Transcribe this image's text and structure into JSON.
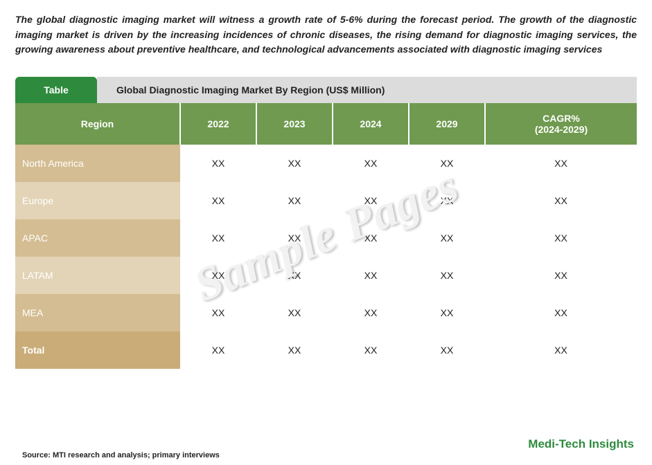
{
  "intro_text": "The global diagnostic imaging market will witness a growth rate of 5-6% during the forecast period. The growth of the diagnostic imaging market is driven by the increasing incidences of chronic diseases, the rising demand for diagnostic imaging services, the growing awareness about preventive healthcare, and technological advancements associated with diagnostic imaging services",
  "title_tab": "Table",
  "title_text": "Global Diagnostic Imaging Market By Region (US$ Million)",
  "table": {
    "header_bg": "#6f9a4f",
    "header_text_color": "#ffffff",
    "row_odd_region_bg": "#d4bd92",
    "row_even_region_bg": "#e3d4b7",
    "row_total_region_bg": "#c9ac77",
    "columns": [
      "Region",
      "2022",
      "2023",
      "2024",
      "2029",
      "CAGR%\n(2024-2029)"
    ],
    "rows": [
      {
        "region": "North America",
        "values": [
          "XX",
          "XX",
          "XX",
          "XX",
          "XX"
        ],
        "kind": "odd"
      },
      {
        "region": "Europe",
        "values": [
          "XX",
          "XX",
          "XX",
          "XX",
          "XX"
        ],
        "kind": "even"
      },
      {
        "region": "APAC",
        "values": [
          "XX",
          "XX",
          "XX",
          "XX",
          "XX"
        ],
        "kind": "odd"
      },
      {
        "region": "LATAM",
        "values": [
          "XX",
          "XX",
          "XX",
          "XX",
          "XX"
        ],
        "kind": "even"
      },
      {
        "region": "MEA",
        "values": [
          "XX",
          "XX",
          "XX",
          "XX",
          "XX"
        ],
        "kind": "odd"
      },
      {
        "region": "Total",
        "values": [
          "XX",
          "XX",
          "XX",
          "XX",
          "XX"
        ],
        "kind": "total"
      }
    ]
  },
  "source_text": "Source: MTI research and analysis; primary interviews",
  "brand_text": "Medi-Tech Insights",
  "watermark_text": "Sample Pages",
  "colors": {
    "tab_green": "#2e8b3d",
    "title_bar_bg": "#dcdcdc",
    "brand_green": "#2e8b3d",
    "text": "#222222",
    "watermark_fill": "#f2f2f2"
  },
  "typography": {
    "intro_fontsize": 14,
    "intro_italic": true,
    "intro_bold": true,
    "title_fontsize": 14,
    "header_fontsize": 14,
    "cell_fontsize": 14,
    "source_fontsize": 11,
    "brand_fontsize": 17,
    "watermark_fontsize": 68
  }
}
